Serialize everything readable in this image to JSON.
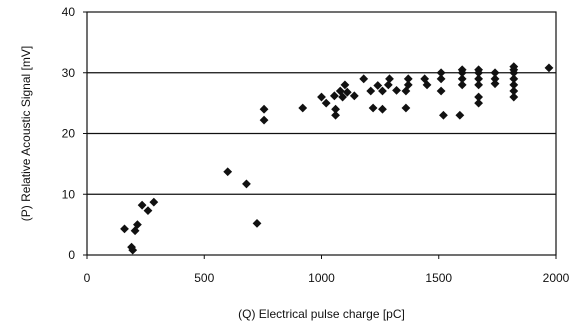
{
  "chart_data": {
    "type": "scatter",
    "title": "",
    "xlabel": "(Q) Electrical pulse charge [pC]",
    "ylabel": "(P) Relative Acoustic Signal [mV]",
    "xlim": [
      0,
      2000
    ],
    "ylim": [
      0,
      40
    ],
    "x_ticks": [
      0,
      500,
      1000,
      1500,
      2000
    ],
    "y_ticks": [
      0,
      10,
      20,
      30,
      40
    ],
    "x_tick_labels": [
      "0",
      "500",
      "1000",
      "1500",
      "2000"
    ],
    "y_tick_labels": [
      "0",
      "10",
      "20",
      "30",
      "40"
    ],
    "grid": "horizontal",
    "legend": "none",
    "marker": "diamond",
    "colors": {
      "marker": "#111111",
      "axis": "#111111",
      "grid": "#111111",
      "background": "#ffffff"
    },
    "points": [
      [
        160,
        4.3
      ],
      [
        190,
        1.3
      ],
      [
        195,
        0.8
      ],
      [
        205,
        4.0
      ],
      [
        215,
        5.0
      ],
      [
        235,
        8.2
      ],
      [
        260,
        7.3
      ],
      [
        285,
        8.7
      ],
      [
        600,
        13.7
      ],
      [
        680,
        11.7
      ],
      [
        725,
        5.2
      ],
      [
        755,
        24.0
      ],
      [
        755,
        22.2
      ],
      [
        920,
        24.2
      ],
      [
        1000,
        26.0
      ],
      [
        1020,
        25.0
      ],
      [
        1055,
        26.2
      ],
      [
        1060,
        24.0
      ],
      [
        1060,
        23.0
      ],
      [
        1080,
        27.0
      ],
      [
        1090,
        26.0
      ],
      [
        1100,
        28.0
      ],
      [
        1110,
        26.8
      ],
      [
        1140,
        26.2
      ],
      [
        1180,
        29.0
      ],
      [
        1210,
        27.0
      ],
      [
        1220,
        24.2
      ],
      [
        1240,
        27.9
      ],
      [
        1260,
        27.0
      ],
      [
        1260,
        24.0
      ],
      [
        1285,
        28.0
      ],
      [
        1290,
        29.0
      ],
      [
        1320,
        27.1
      ],
      [
        1360,
        27.0
      ],
      [
        1360,
        24.2
      ],
      [
        1370,
        28.0
      ],
      [
        1370,
        29.0
      ],
      [
        1440,
        29.0
      ],
      [
        1450,
        28.0
      ],
      [
        1510,
        30.0
      ],
      [
        1510,
        29.0
      ],
      [
        1510,
        27.0
      ],
      [
        1520,
        23.0
      ],
      [
        1590,
        23.0
      ],
      [
        1600,
        30.0
      ],
      [
        1600,
        29.0
      ],
      [
        1600,
        28.0
      ],
      [
        1600,
        30.5
      ],
      [
        1670,
        30.5
      ],
      [
        1670,
        30.0
      ],
      [
        1670,
        29.0
      ],
      [
        1670,
        28.0
      ],
      [
        1670,
        26.0
      ],
      [
        1670,
        25.0
      ],
      [
        1740,
        30.0
      ],
      [
        1740,
        29.0
      ],
      [
        1740,
        28.2
      ],
      [
        1820,
        31.0
      ],
      [
        1820,
        30.5
      ],
      [
        1820,
        30.0
      ],
      [
        1820,
        29.0
      ],
      [
        1820,
        28.0
      ],
      [
        1820,
        27.0
      ],
      [
        1820,
        26.0
      ],
      [
        1970,
        30.8
      ]
    ]
  }
}
